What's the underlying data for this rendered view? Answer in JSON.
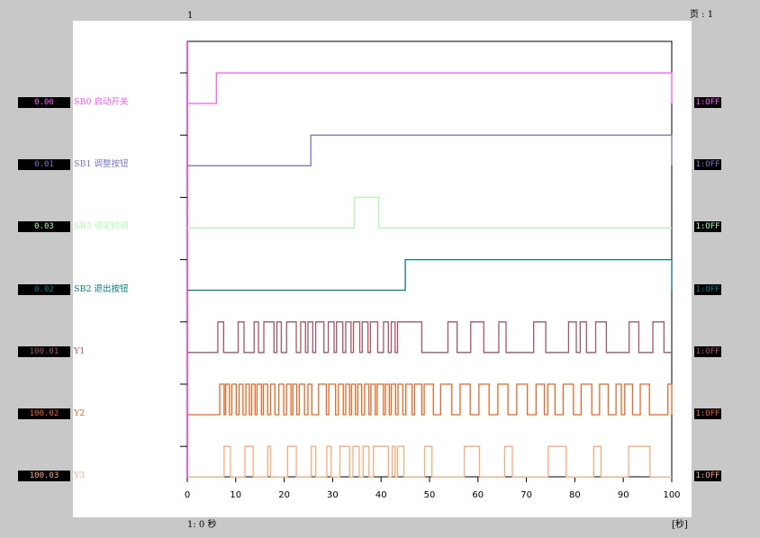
{
  "header": {
    "page_label": "页 : 1",
    "top_mark": "1"
  },
  "footer": {
    "left": "1: 0 秒",
    "right": "[秒]"
  },
  "chart_data": {
    "type": "line",
    "title": "",
    "xlabel": "",
    "ylabel": "",
    "xlim": [
      0,
      100
    ],
    "x_ticks": [
      0,
      10,
      20,
      30,
      40,
      50,
      60,
      70,
      80,
      90,
      100
    ],
    "grid": false,
    "series": [
      {
        "name": "SB0 启动开关",
        "address": "0.00",
        "state": "1:OFF",
        "color": "#ff55ff",
        "high_intervals": [
          [
            6,
            100
          ]
        ]
      },
      {
        "name": "SB1 调整按钮",
        "address": "0.01",
        "state": "1:OFF",
        "color": "#7777cc",
        "high_intervals": [
          [
            25.5,
            100
          ]
        ]
      },
      {
        "name": "SB3 设定时间",
        "address": "0.03",
        "state": "1:OFF",
        "color": "#aaffaa",
        "high_intervals": [
          [
            34.5,
            39.5
          ]
        ]
      },
      {
        "name": "SB2 退出按钮",
        "address": "0.02",
        "state": "1:OFF",
        "color": "#008080",
        "high_intervals": [
          [
            45,
            100
          ]
        ]
      },
      {
        "name": "Y1",
        "address": "100.01",
        "state": "1:OFF",
        "color": "#aa5566",
        "high_intervals": [
          [
            6.3,
            7.5
          ],
          [
            10.5,
            11.7
          ],
          [
            13.8,
            14.7
          ],
          [
            15.8,
            17.9
          ],
          [
            18.5,
            19.4
          ],
          [
            20.5,
            22.5
          ],
          [
            23.4,
            24.4
          ],
          [
            24.9,
            25.9
          ],
          [
            26.5,
            28.2
          ],
          [
            29.1,
            30.3
          ],
          [
            30.8,
            32.1
          ],
          [
            32.7,
            33.8
          ],
          [
            34.3,
            35.6
          ],
          [
            36.1,
            37.3
          ],
          [
            37.8,
            39.3
          ],
          [
            40.5,
            41.5
          ],
          [
            42.1,
            42.9
          ],
          [
            43.4,
            48.4
          ],
          [
            53.8,
            55.7
          ],
          [
            58.5,
            61.2
          ],
          [
            64.3,
            65.8
          ],
          [
            71.5,
            74
          ],
          [
            78.7,
            80.3
          ],
          [
            81.1,
            82.4
          ],
          [
            84.3,
            86.5
          ],
          [
            91.2,
            93.2
          ],
          [
            96.1,
            98.4
          ]
        ]
      },
      {
        "name": "Y2",
        "address": "100.02",
        "state": "1:OFF",
        "color": "#ee6622",
        "high_intervals": [
          [
            6.7,
            7.6
          ],
          [
            7.9,
            8.7
          ],
          [
            9.2,
            10.1
          ],
          [
            10.7,
            11.5
          ],
          [
            12.1,
            12.8
          ],
          [
            13.3,
            14
          ],
          [
            14.4,
            15.3
          ],
          [
            15.7,
            16.6
          ],
          [
            17.2,
            18.1
          ],
          [
            18.9,
            19.9
          ],
          [
            20.5,
            21.4
          ],
          [
            21.8,
            22.6
          ],
          [
            23.1,
            24.2
          ],
          [
            24.9,
            25.7
          ],
          [
            27.1,
            28.7
          ],
          [
            29.2,
            30.6
          ],
          [
            31.2,
            32.2
          ],
          [
            32.7,
            33.5
          ],
          [
            33.9,
            34.7
          ],
          [
            35.2,
            36
          ],
          [
            36.6,
            37.5
          ],
          [
            37.9,
            38.8
          ],
          [
            39.2,
            40.5
          ],
          [
            40.9,
            41.7
          ],
          [
            42.1,
            43
          ],
          [
            43.5,
            44.5
          ],
          [
            45.1,
            46.4
          ],
          [
            46.9,
            48.4
          ],
          [
            48.9,
            50.8
          ],
          [
            52.3,
            54.6
          ],
          [
            56.3,
            58.4
          ],
          [
            60.2,
            62.3
          ],
          [
            64.1,
            66.2
          ],
          [
            68,
            70.2
          ],
          [
            72,
            73.7
          ],
          [
            74.4,
            75.9
          ],
          [
            77.6,
            79.7
          ],
          [
            81.3,
            83.5
          ],
          [
            85.1,
            86.9
          ],
          [
            88.5,
            89.6
          ],
          [
            90.3,
            91.9
          ],
          [
            93.5,
            95.4
          ],
          [
            99.2,
            100
          ]
        ]
      },
      {
        "name": "Y3",
        "address": "100.03",
        "state": "1:OFF",
        "color": "#ffaa77",
        "high_intervals": [
          [
            7.6,
            8.9
          ],
          [
            11.9,
            13.6
          ],
          [
            16.6,
            17.2
          ],
          [
            20.7,
            22.5
          ],
          [
            25.6,
            26.5
          ],
          [
            28.8,
            29.7
          ],
          [
            31.5,
            33.5
          ],
          [
            34.2,
            35.5
          ],
          [
            36.3,
            37.5
          ],
          [
            38.4,
            41.5
          ],
          [
            42.3,
            42.9
          ],
          [
            43.4,
            44.7
          ],
          [
            49,
            50.5
          ],
          [
            57.2,
            60.3
          ],
          [
            65.5,
            67.1
          ],
          [
            74.5,
            78.2
          ],
          [
            83.9,
            85.4
          ],
          [
            91.1,
            95.5
          ]
        ]
      }
    ]
  }
}
